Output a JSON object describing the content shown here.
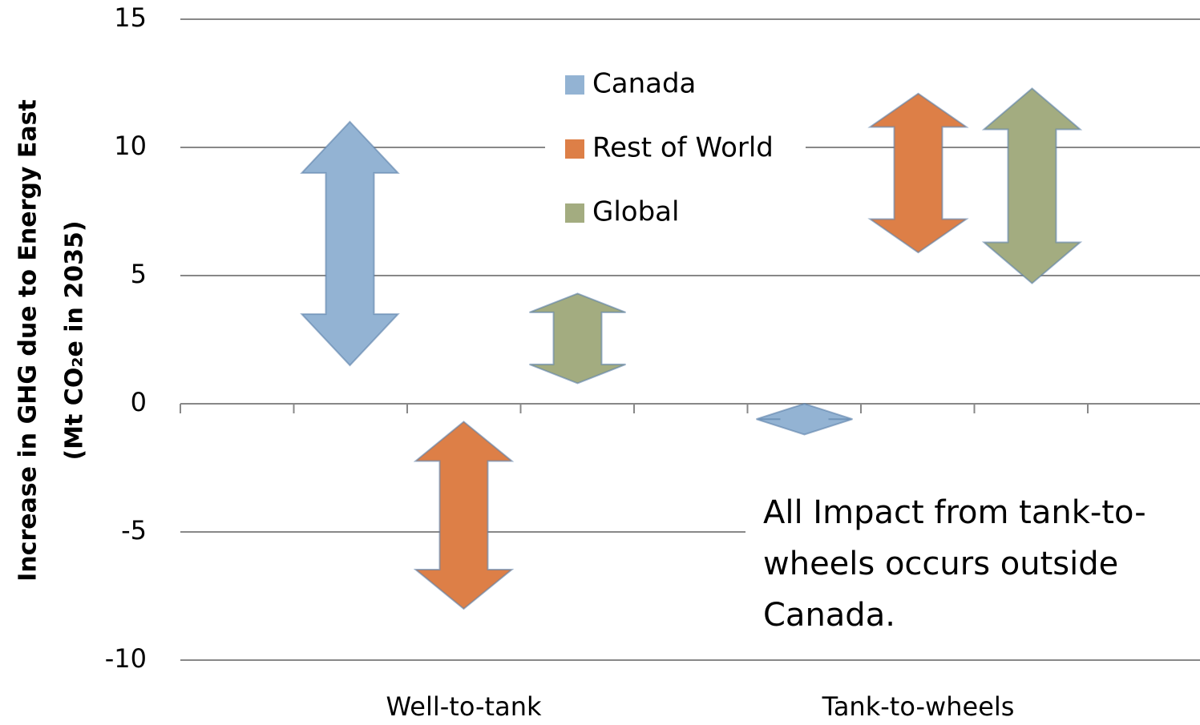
{
  "chart_data": {
    "type": "range",
    "y_label": [
      "Increase in GHG due to Energy East",
      "(Mt CO₂e in 2035)"
    ],
    "annotation": [
      "All Impact from tank-to-",
      "wheels occurs outside",
      "Canada."
    ],
    "categories": [
      "Well-to-tank",
      "Tank-to-wheels"
    ],
    "series": [
      {
        "name": "Canada",
        "color": "#93b3d3",
        "high": [
          11.0,
          0
        ],
        "low": [
          1.5,
          -1.2
        ]
      },
      {
        "name": "Rest of World",
        "color": "#dd7f47",
        "high": [
          -0.7,
          12.1
        ],
        "low": [
          -8.0,
          5.9
        ]
      },
      {
        "name": "Global",
        "color": "#a3ac80",
        "high": [
          4.3,
          12.3
        ],
        "low": [
          0.8,
          4.7
        ]
      }
    ],
    "ylim": [
      -10,
      15
    ],
    "yticks": [
      -10,
      -5,
      0,
      5,
      10,
      15
    ],
    "grid": true
  }
}
